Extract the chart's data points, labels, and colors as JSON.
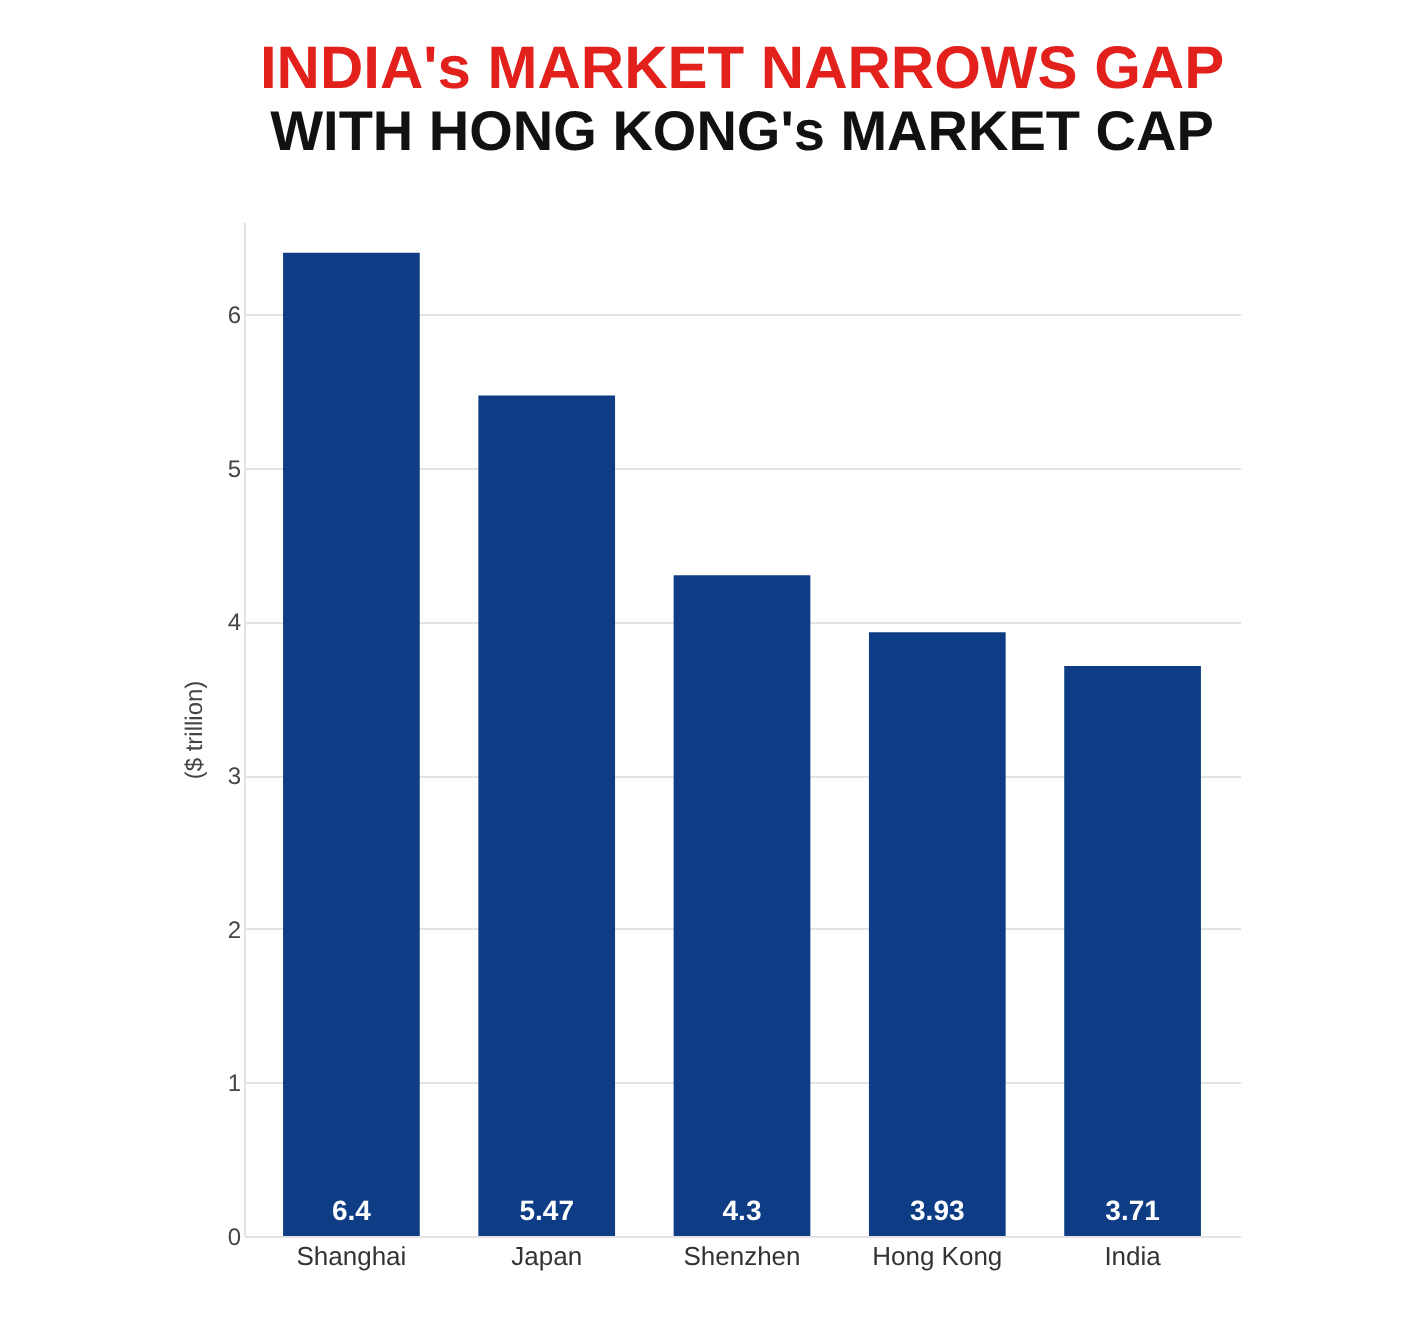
{
  "chart_data": {
    "type": "bar",
    "title": "INDIA's MARKET NARROWS GAP",
    "subtitle": "WITH HONG KONG's MARKET CAP",
    "ylabel": "($ trillion)",
    "categories": [
      "Shanghai",
      "Japan",
      "Shenzhen",
      "Hong Kong",
      "India"
    ],
    "values": [
      6.4,
      5.47,
      4.3,
      3.93,
      3.71
    ],
    "color": "#0e3d86",
    "ylim": [
      0,
      6.6
    ],
    "yticks": [
      0,
      1,
      2,
      3,
      4,
      5,
      6
    ],
    "grid": "y",
    "data_labels": true
  }
}
